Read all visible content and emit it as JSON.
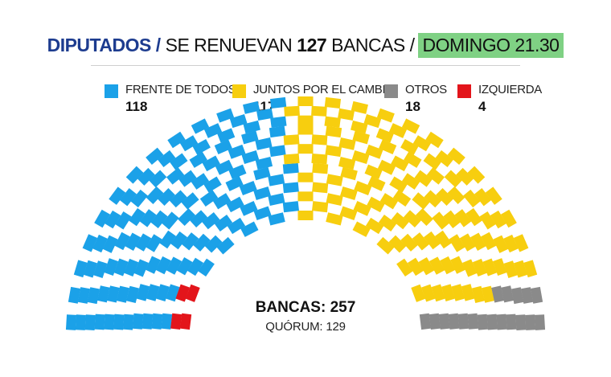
{
  "header": {
    "part1": "DIPUTADOS /",
    "part2": "SE RENUEVAN",
    "part3": "127",
    "part4": "BANCAS /",
    "highlight": "DOMINGO 21.30"
  },
  "colors": {
    "header_blue": "#1d3c8f",
    "highlight_green": "#7fd184",
    "frente": "#1ba1e8",
    "juntos": "#f7ce0f",
    "otros": "#8a8a8a",
    "izquierda": "#e3151b"
  },
  "chart_data": {
    "type": "parliament",
    "total_seats": 257,
    "total_label": "BANCAS: 257",
    "quorum_label": "QUÓRUM: 129",
    "quorum": 129,
    "series": [
      {
        "name": "FRENTE DE TODOS",
        "value": 118,
        "color": "#1ba1e8"
      },
      {
        "name": "JUNTOS POR EL CAMBIO",
        "value": 117,
        "color": "#f7ce0f"
      },
      {
        "name": "OTROS",
        "value": 18,
        "color": "#8a8a8a"
      },
      {
        "name": "IZQUIERDA",
        "value": 4,
        "color": "#e3151b"
      }
    ]
  }
}
